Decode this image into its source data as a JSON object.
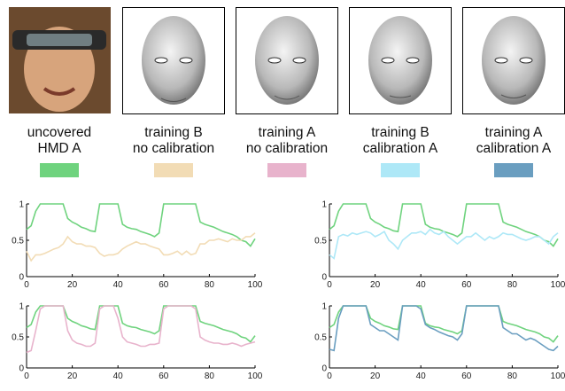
{
  "panels": [
    {
      "label": [
        "uncovered",
        "HMD A"
      ],
      "color": "#6fd37e"
    },
    {
      "label": [
        "training B",
        "no calibration"
      ],
      "color": "#f2dcb5"
    },
    {
      "label": [
        "training A",
        "no calibration"
      ],
      "color": "#e8b3cc"
    },
    {
      "label": [
        "training B",
        "calibration A"
      ],
      "color": "#aee8f7"
    },
    {
      "label": [
        "training A",
        "calibration A"
      ],
      "color": "#6a9ec0"
    }
  ],
  "chart_data": [
    {
      "type": "line",
      "x": [
        0,
        2,
        4,
        6,
        8,
        10,
        12,
        14,
        16,
        18,
        20,
        22,
        24,
        26,
        28,
        30,
        32,
        34,
        36,
        38,
        40,
        42,
        44,
        46,
        48,
        50,
        52,
        54,
        56,
        58,
        60,
        62,
        64,
        66,
        68,
        70,
        72,
        74,
        76,
        78,
        80,
        82,
        84,
        86,
        88,
        90,
        92,
        94,
        96,
        98,
        100
      ],
      "series": [
        {
          "color": "#6fd37e",
          "values": [
            0.65,
            0.7,
            0.9,
            1,
            1,
            1,
            1,
            1,
            1,
            0.8,
            0.75,
            0.72,
            0.68,
            0.66,
            0.63,
            0.62,
            1,
            1,
            1,
            1,
            1,
            0.72,
            0.68,
            0.66,
            0.65,
            0.62,
            0.6,
            0.58,
            0.55,
            0.6,
            1,
            1,
            1,
            1,
            1,
            1,
            1,
            1,
            0.75,
            0.72,
            0.7,
            0.68,
            0.65,
            0.62,
            0.6,
            0.58,
            0.55,
            0.5,
            0.48,
            0.42,
            0.52
          ]
        },
        {
          "color": "#f2dcb5",
          "values": [
            0.35,
            0.22,
            0.3,
            0.3,
            0.32,
            0.35,
            0.38,
            0.4,
            0.45,
            0.55,
            0.48,
            0.45,
            0.45,
            0.42,
            0.42,
            0.4,
            0.32,
            0.28,
            0.3,
            0.3,
            0.32,
            0.38,
            0.42,
            0.45,
            0.48,
            0.45,
            0.45,
            0.42,
            0.4,
            0.38,
            0.3,
            0.3,
            0.32,
            0.35,
            0.3,
            0.35,
            0.3,
            0.32,
            0.45,
            0.45,
            0.5,
            0.5,
            0.52,
            0.5,
            0.48,
            0.52,
            0.5,
            0.5,
            0.55,
            0.55,
            0.6
          ]
        }
      ],
      "xlim": [
        0,
        100
      ],
      "ylim": [
        0,
        1
      ],
      "xticks": [
        0,
        20,
        40,
        60,
        80,
        100
      ],
      "yticks": [
        0,
        0.5,
        1
      ]
    },
    {
      "type": "line",
      "x": [
        0,
        2,
        4,
        6,
        8,
        10,
        12,
        14,
        16,
        18,
        20,
        22,
        24,
        26,
        28,
        30,
        32,
        34,
        36,
        38,
        40,
        42,
        44,
        46,
        48,
        50,
        52,
        54,
        56,
        58,
        60,
        62,
        64,
        66,
        68,
        70,
        72,
        74,
        76,
        78,
        80,
        82,
        84,
        86,
        88,
        90,
        92,
        94,
        96,
        98,
        100
      ],
      "series": [
        {
          "color": "#6fd37e",
          "values": [
            0.65,
            0.7,
            0.9,
            1,
            1,
            1,
            1,
            1,
            1,
            0.8,
            0.75,
            0.72,
            0.68,
            0.66,
            0.63,
            0.62,
            1,
            1,
            1,
            1,
            1,
            0.72,
            0.68,
            0.66,
            0.65,
            0.62,
            0.6,
            0.58,
            0.55,
            0.6,
            1,
            1,
            1,
            1,
            1,
            1,
            1,
            1,
            0.75,
            0.72,
            0.7,
            0.68,
            0.65,
            0.62,
            0.6,
            0.58,
            0.55,
            0.5,
            0.48,
            0.42,
            0.52
          ]
        },
        {
          "color": "#aee8f7",
          "values": [
            0.3,
            0.25,
            0.55,
            0.58,
            0.56,
            0.6,
            0.58,
            0.6,
            0.62,
            0.6,
            0.55,
            0.58,
            0.62,
            0.5,
            0.45,
            0.38,
            0.5,
            0.55,
            0.6,
            0.6,
            0.62,
            0.58,
            0.65,
            0.6,
            0.58,
            0.62,
            0.55,
            0.5,
            0.45,
            0.5,
            0.55,
            0.55,
            0.6,
            0.55,
            0.5,
            0.55,
            0.52,
            0.55,
            0.6,
            0.58,
            0.58,
            0.55,
            0.52,
            0.5,
            0.52,
            0.55,
            0.55,
            0.5,
            0.45,
            0.55,
            0.6
          ]
        }
      ],
      "xlim": [
        0,
        100
      ],
      "ylim": [
        0,
        1
      ],
      "xticks": [
        0,
        20,
        40,
        60,
        80,
        100
      ],
      "yticks": [
        0,
        0.5,
        1
      ]
    },
    {
      "type": "line",
      "x": [
        0,
        2,
        4,
        6,
        8,
        10,
        12,
        14,
        16,
        18,
        20,
        22,
        24,
        26,
        28,
        30,
        32,
        34,
        36,
        38,
        40,
        42,
        44,
        46,
        48,
        50,
        52,
        54,
        56,
        58,
        60,
        62,
        64,
        66,
        68,
        70,
        72,
        74,
        76,
        78,
        80,
        82,
        84,
        86,
        88,
        90,
        92,
        94,
        96,
        98,
        100
      ],
      "series": [
        {
          "color": "#6fd37e",
          "values": [
            0.65,
            0.7,
            0.9,
            1,
            1,
            1,
            1,
            1,
            1,
            0.8,
            0.75,
            0.72,
            0.68,
            0.66,
            0.63,
            0.62,
            1,
            1,
            1,
            1,
            1,
            0.72,
            0.68,
            0.66,
            0.65,
            0.62,
            0.6,
            0.58,
            0.55,
            0.6,
            1,
            1,
            1,
            1,
            1,
            1,
            1,
            1,
            0.75,
            0.72,
            0.7,
            0.68,
            0.65,
            0.62,
            0.6,
            0.58,
            0.55,
            0.5,
            0.48,
            0.42,
            0.52
          ]
        },
        {
          "color": "#e8b3cc",
          "values": [
            0.25,
            0.28,
            0.6,
            0.95,
            1,
            1,
            1,
            1,
            1,
            0.6,
            0.45,
            0.4,
            0.38,
            0.35,
            0.35,
            0.4,
            0.95,
            1,
            1,
            1,
            0.8,
            0.5,
            0.42,
            0.4,
            0.38,
            0.35,
            0.35,
            0.38,
            0.38,
            0.4,
            0.95,
            1,
            1,
            1,
            1,
            1,
            1,
            0.95,
            0.5,
            0.45,
            0.42,
            0.4,
            0.4,
            0.38,
            0.38,
            0.4,
            0.38,
            0.35,
            0.38,
            0.4,
            0.42
          ]
        }
      ],
      "xlim": [
        0,
        100
      ],
      "ylim": [
        0,
        1
      ],
      "xticks": [
        0,
        20,
        40,
        60,
        80,
        100
      ],
      "yticks": [
        0,
        0.5,
        1
      ]
    },
    {
      "type": "line",
      "x": [
        0,
        2,
        4,
        6,
        8,
        10,
        12,
        14,
        16,
        18,
        20,
        22,
        24,
        26,
        28,
        30,
        32,
        34,
        36,
        38,
        40,
        42,
        44,
        46,
        48,
        50,
        52,
        54,
        56,
        58,
        60,
        62,
        64,
        66,
        68,
        70,
        72,
        74,
        76,
        78,
        80,
        82,
        84,
        86,
        88,
        90,
        92,
        94,
        96,
        98,
        100
      ],
      "series": [
        {
          "color": "#6fd37e",
          "values": [
            0.65,
            0.7,
            0.9,
            1,
            1,
            1,
            1,
            1,
            1,
            0.8,
            0.75,
            0.72,
            0.68,
            0.66,
            0.63,
            0.62,
            1,
            1,
            1,
            1,
            1,
            0.72,
            0.68,
            0.66,
            0.65,
            0.62,
            0.6,
            0.58,
            0.55,
            0.6,
            1,
            1,
            1,
            1,
            1,
            1,
            1,
            1,
            0.75,
            0.72,
            0.7,
            0.68,
            0.65,
            0.62,
            0.6,
            0.58,
            0.55,
            0.5,
            0.48,
            0.42,
            0.52
          ]
        },
        {
          "color": "#6a9ec0",
          "values": [
            0.3,
            0.28,
            0.8,
            1,
            1,
            1,
            1,
            1,
            1,
            0.7,
            0.65,
            0.6,
            0.6,
            0.55,
            0.5,
            0.45,
            1,
            1,
            1,
            1,
            0.95,
            0.7,
            0.65,
            0.62,
            0.58,
            0.55,
            0.52,
            0.5,
            0.45,
            0.55,
            1,
            1,
            1,
            1,
            1,
            1,
            1,
            1,
            0.65,
            0.6,
            0.55,
            0.55,
            0.5,
            0.45,
            0.48,
            0.45,
            0.4,
            0.35,
            0.3,
            0.28,
            0.35
          ]
        }
      ],
      "xlim": [
        0,
        100
      ],
      "ylim": [
        0,
        1
      ],
      "xticks": [
        0,
        20,
        40,
        60,
        80,
        100
      ],
      "yticks": [
        0,
        0.5,
        1
      ]
    }
  ]
}
